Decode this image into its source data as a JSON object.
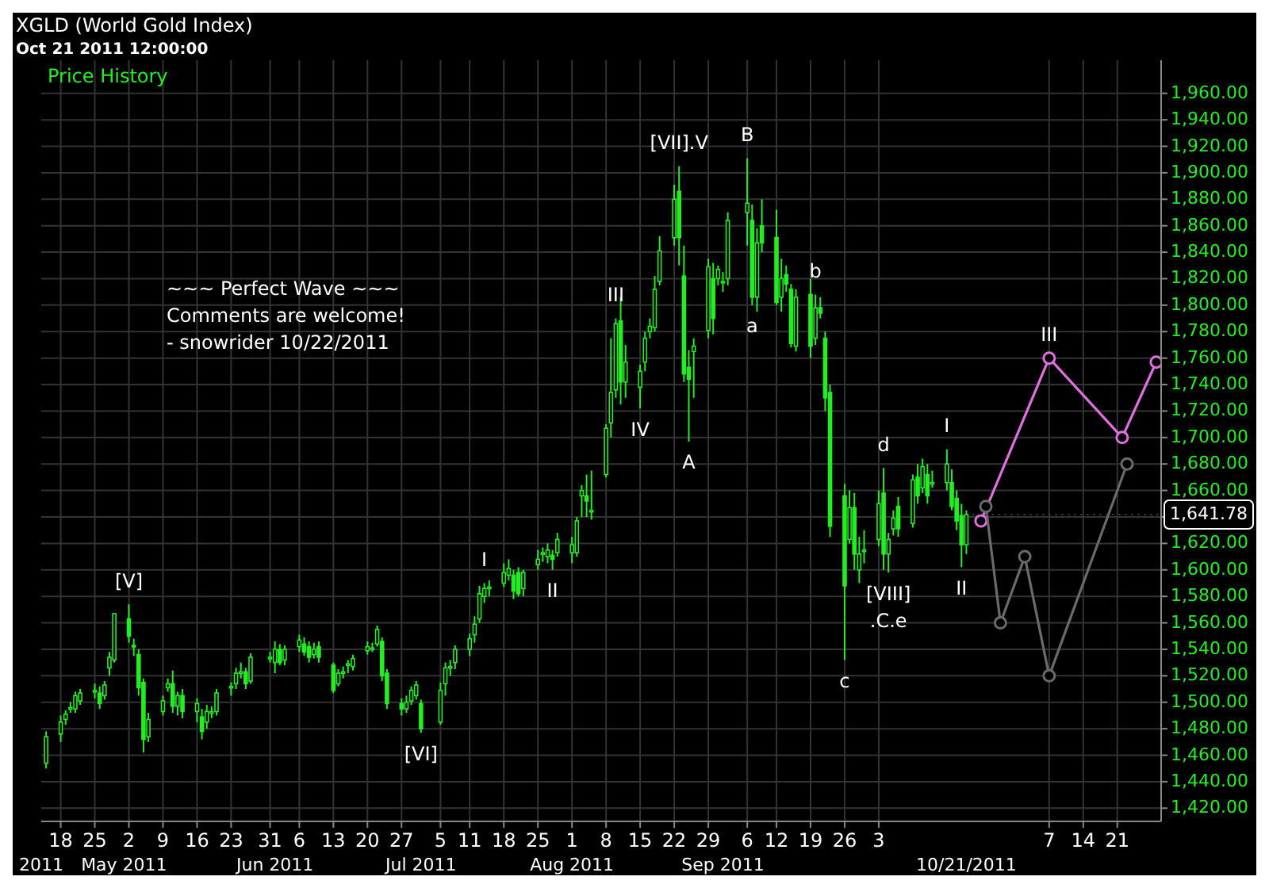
{
  "chart_data": {
    "type": "candlestick",
    "title": "XGLD (World Gold Index)",
    "subtitle": "Oct 21 2011 12:00:00",
    "color": "#22ee22",
    "x": [
      "2011-04-15",
      "2011-04-18",
      "2011-04-19",
      "2011-04-20",
      "2011-04-21",
      "2011-04-22",
      "2011-04-25",
      "2011-04-26",
      "2011-04-27",
      "2011-04-28",
      "2011-04-29",
      "2011-05-02",
      "2011-05-03",
      "2011-05-04",
      "2011-05-05",
      "2011-05-06",
      "2011-05-09",
      "2011-05-10",
      "2011-05-11",
      "2011-05-12",
      "2011-05-13",
      "2011-05-16",
      "2011-05-17",
      "2011-05-18",
      "2011-05-19",
      "2011-05-20",
      "2011-05-23",
      "2011-05-24",
      "2011-05-25",
      "2011-05-26",
      "2011-05-27",
      "2011-05-31",
      "2011-06-01",
      "2011-06-02",
      "2011-06-03",
      "2011-06-06",
      "2011-06-07",
      "2011-06-08",
      "2011-06-09",
      "2011-06-10",
      "2011-06-13",
      "2011-06-14",
      "2011-06-15",
      "2011-06-16",
      "2011-06-17",
      "2011-06-20",
      "2011-06-21",
      "2011-06-22",
      "2011-06-23",
      "2011-06-24",
      "2011-06-27",
      "2011-06-28",
      "2011-06-29",
      "2011-06-30",
      "2011-07-01",
      "2011-07-05",
      "2011-07-06",
      "2011-07-07",
      "2011-07-08",
      "2011-07-11",
      "2011-07-12",
      "2011-07-13",
      "2011-07-14",
      "2011-07-15",
      "2011-07-18",
      "2011-07-19",
      "2011-07-20",
      "2011-07-21",
      "2011-07-22",
      "2011-07-25",
      "2011-07-26",
      "2011-07-27",
      "2011-07-28",
      "2011-07-29",
      "2011-08-01",
      "2011-08-02",
      "2011-08-03",
      "2011-08-04",
      "2011-08-05",
      "2011-08-08",
      "2011-08-09",
      "2011-08-10",
      "2011-08-11",
      "2011-08-12",
      "2011-08-15",
      "2011-08-16",
      "2011-08-17",
      "2011-08-18",
      "2011-08-19",
      "2011-08-22",
      "2011-08-23",
      "2011-08-24",
      "2011-08-25",
      "2011-08-26",
      "2011-08-29",
      "2011-08-30",
      "2011-08-31",
      "2011-09-01",
      "2011-09-02",
      "2011-09-06",
      "2011-09-07",
      "2011-09-08",
      "2011-09-09",
      "2011-09-12",
      "2011-09-13",
      "2011-09-14",
      "2011-09-15",
      "2011-09-16",
      "2011-09-19",
      "2011-09-20",
      "2011-09-21",
      "2011-09-22",
      "2011-09-23",
      "2011-09-26",
      "2011-09-27",
      "2011-09-28",
      "2011-09-29",
      "2011-09-30",
      "2011-10-03",
      "2011-10-04",
      "2011-10-05",
      "2011-10-06",
      "2011-10-07",
      "2011-10-10",
      "2011-10-11",
      "2011-10-12",
      "2011-10-13",
      "2011-10-14",
      "2011-10-17",
      "2011-10-18",
      "2011-10-19",
      "2011-10-20",
      "2011-10-21"
    ],
    "ohlc": [
      [
        1454,
        1478,
        1450,
        1474
      ],
      [
        1476,
        1490,
        1470,
        1485
      ],
      [
        1487,
        1494,
        1483,
        1491
      ],
      [
        1496,
        1500,
        1492,
        1496
      ],
      [
        1495,
        1508,
        1492,
        1505
      ],
      [
        1501,
        1510,
        1498,
        1507
      ],
      [
        1509,
        1514,
        1503,
        1509
      ],
      [
        1507,
        1512,
        1495,
        1499
      ],
      [
        1505,
        1516,
        1502,
        1513
      ],
      [
        1526,
        1538,
        1520,
        1534
      ],
      [
        1532,
        1567,
        1530,
        1567
      ],
      [
        1563,
        1574,
        1545,
        1550
      ],
      [
        1543,
        1548,
        1535,
        1542
      ],
      [
        1536,
        1540,
        1505,
        1511
      ],
      [
        1515,
        1518,
        1462,
        1472
      ],
      [
        1474,
        1492,
        1470,
        1487
      ],
      [
        1493,
        1505,
        1490,
        1501
      ],
      [
        1511,
        1518,
        1508,
        1514
      ],
      [
        1514,
        1524,
        1492,
        1497
      ],
      [
        1497,
        1508,
        1490,
        1505
      ],
      [
        1505,
        1510,
        1488,
        1493
      ],
      [
        1493,
        1503,
        1485,
        1499
      ],
      [
        1489,
        1495,
        1472,
        1478
      ],
      [
        1485,
        1498,
        1480,
        1493
      ],
      [
        1493,
        1497,
        1488,
        1493
      ],
      [
        1493,
        1510,
        1490,
        1507
      ],
      [
        1512,
        1515,
        1505,
        1512
      ],
      [
        1514,
        1526,
        1510,
        1522
      ],
      [
        1523,
        1530,
        1518,
        1523
      ],
      [
        1523,
        1526,
        1510,
        1514
      ],
      [
        1516,
        1537,
        1514,
        1534
      ],
      [
        1534,
        1538,
        1530,
        1534
      ],
      [
        1530,
        1546,
        1522,
        1540
      ],
      [
        1540,
        1544,
        1528,
        1530
      ],
      [
        1532,
        1543,
        1528,
        1540
      ],
      [
        1542,
        1551,
        1538,
        1547
      ],
      [
        1544,
        1549,
        1535,
        1538
      ],
      [
        1542,
        1546,
        1530,
        1534
      ],
      [
        1536,
        1545,
        1533,
        1540
      ],
      [
        1542,
        1546,
        1530,
        1534
      ],
      [
        1528,
        1530,
        1507,
        1509
      ],
      [
        1514,
        1525,
        1512,
        1522
      ],
      [
        1523,
        1527,
        1518,
        1523
      ],
      [
        1529,
        1532,
        1522,
        1529
      ],
      [
        1527,
        1536,
        1524,
        1533
      ],
      [
        1539,
        1546,
        1536,
        1542
      ],
      [
        1541,
        1545,
        1538,
        1541
      ],
      [
        1544,
        1558,
        1542,
        1555
      ],
      [
        1546,
        1549,
        1516,
        1520
      ],
      [
        1522,
        1525,
        1495,
        1499
      ],
      [
        1499,
        1503,
        1490,
        1495
      ],
      [
        1495,
        1505,
        1492,
        1500
      ],
      [
        1501,
        1512,
        1498,
        1509
      ],
      [
        1505,
        1516,
        1502,
        1513
      ],
      [
        1499,
        1502,
        1477,
        1480
      ],
      [
        1485,
        1515,
        1483,
        1509
      ],
      [
        1514,
        1530,
        1505,
        1526
      ],
      [
        1527,
        1532,
        1520,
        1527
      ],
      [
        1530,
        1543,
        1525,
        1540
      ],
      [
        1540,
        1552,
        1535,
        1548
      ],
      [
        1551,
        1565,
        1545,
        1559
      ],
      [
        1563,
        1588,
        1560,
        1582
      ],
      [
        1580,
        1590,
        1575,
        1586
      ],
      [
        1587,
        1592,
        1580,
        1587
      ],
      [
        1590,
        1605,
        1587,
        1598
      ],
      [
        1596,
        1608,
        1592,
        1601
      ],
      [
        1596,
        1600,
        1578,
        1584
      ],
      [
        1598,
        1602,
        1580,
        1582
      ],
      [
        1586,
        1600,
        1580,
        1598
      ],
      [
        1604,
        1615,
        1600,
        1608
      ],
      [
        1613,
        1617,
        1606,
        1613
      ],
      [
        1610,
        1620,
        1605,
        1615
      ],
      [
        1611,
        1615,
        1600,
        1608
      ],
      [
        1613,
        1628,
        1610,
        1623
      ],
      [
        1613,
        1625,
        1605,
        1619
      ],
      [
        1613,
        1640,
        1610,
        1637
      ],
      [
        1656,
        1664,
        1640,
        1660
      ],
      [
        1656,
        1672,
        1640,
        1652
      ],
      [
        1645,
        1675,
        1638,
        1645
      ],
      [
        1672,
        1710,
        1670,
        1707
      ],
      [
        1711,
        1775,
        1700,
        1734
      ],
      [
        1736,
        1790,
        1730,
        1786
      ],
      [
        1788,
        1806,
        1725,
        1742
      ],
      [
        1742,
        1770,
        1730,
        1757
      ],
      [
        1738,
        1755,
        1722,
        1750
      ],
      [
        1757,
        1780,
        1750,
        1775
      ],
      [
        1780,
        1790,
        1775,
        1784
      ],
      [
        1783,
        1822,
        1780,
        1812
      ],
      [
        1818,
        1852,
        1815,
        1841
      ],
      [
        1851,
        1891,
        1845,
        1880
      ],
      [
        1886,
        1905,
        1830,
        1851
      ],
      [
        1822,
        1845,
        1742,
        1748
      ],
      [
        1753,
        1766,
        1697,
        1744
      ],
      [
        1765,
        1775,
        1730,
        1769
      ],
      [
        1781,
        1835,
        1775,
        1829
      ],
      [
        1820,
        1832,
        1778,
        1790
      ],
      [
        1820,
        1830,
        1815,
        1827
      ],
      [
        1818,
        1825,
        1810,
        1818
      ],
      [
        1820,
        1870,
        1815,
        1864
      ],
      [
        1870,
        1911,
        1845,
        1877
      ],
      [
        1864,
        1876,
        1800,
        1806
      ],
      [
        1806,
        1858,
        1795,
        1847
      ],
      [
        1860,
        1880,
        1840,
        1847
      ],
      [
        1851,
        1872,
        1800,
        1802
      ],
      [
        1806,
        1835,
        1795,
        1820
      ],
      [
        1823,
        1830,
        1810,
        1816
      ],
      [
        1812,
        1816,
        1768,
        1771
      ],
      [
        1769,
        1812,
        1765,
        1806
      ],
      [
        1808,
        1820,
        1760,
        1769
      ],
      [
        1775,
        1808,
        1770,
        1798
      ],
      [
        1798,
        1806,
        1790,
        1794
      ],
      [
        1775,
        1780,
        1720,
        1730
      ],
      [
        1734,
        1740,
        1625,
        1633
      ],
      [
        1656,
        1665,
        1532,
        1588
      ],
      [
        1623,
        1660,
        1620,
        1647
      ],
      [
        1647,
        1658,
        1600,
        1612
      ],
      [
        1600,
        1625,
        1590,
        1612
      ],
      [
        1615,
        1630,
        1605,
        1615
      ],
      [
        1623,
        1660,
        1618,
        1650
      ],
      [
        1658,
        1677,
        1600,
        1612
      ],
      [
        1612,
        1628,
        1598,
        1623
      ],
      [
        1631,
        1645,
        1626,
        1639
      ],
      [
        1648,
        1655,
        1625,
        1631
      ],
      [
        1635,
        1672,
        1632,
        1668
      ],
      [
        1670,
        1680,
        1650,
        1656
      ],
      [
        1662,
        1684,
        1658,
        1678
      ],
      [
        1672,
        1680,
        1650,
        1656
      ],
      [
        1666,
        1675,
        1662,
        1666
      ],
      [
        1666,
        1691,
        1660,
        1680
      ],
      [
        1666,
        1676,
        1645,
        1648
      ],
      [
        1654,
        1660,
        1630,
        1637
      ],
      [
        1641,
        1650,
        1602,
        1619
      ],
      [
        1619,
        1645,
        1612,
        1641.78
      ]
    ],
    "series": [
      {
        "type": "line",
        "color": "#e070e0",
        "x": [
          "2011-10-24",
          "2011-11-07",
          "2011-11-22",
          "2011-11-29"
        ],
        "values": [
          1637,
          1760,
          1700,
          1757
        ]
      },
      {
        "type": "line",
        "color": "#6a6a6a",
        "x": [
          "2011-10-25",
          "2011-10-28",
          "2011-11-02",
          "2011-11-07",
          "2011-11-23"
        ],
        "values": [
          1648,
          1560,
          1610,
          1520,
          1680
        ]
      }
    ],
    "marker": "circle",
    "line_style": "solid",
    "grid": true,
    "xlim": [
      "2011-04-14",
      "2011-11-30"
    ],
    "x2lim": [
      "2011-04-14",
      "2011-11-30"
    ],
    "x2ticks": [
      {
        "value": "2011-04-14",
        "label": "2011"
      },
      {
        "value": "2011-05-01",
        "label": "May 2011"
      },
      {
        "value": "2011-06-01",
        "label": "Jun 2011"
      },
      {
        "value": "2011-07-01",
        "label": "Jul 2011"
      },
      {
        "value": "2011-08-01",
        "label": "Aug 2011"
      },
      {
        "value": "2011-09-01",
        "label": "Sep 2011"
      },
      {
        "value": "2011-10-21",
        "label": "10/21/2011"
      }
    ],
    "xticks": [
      {
        "value": "2011-04-18",
        "label": "18"
      },
      {
        "value": "2011-04-25",
        "label": "25"
      },
      {
        "value": "2011-05-02",
        "label": "2"
      },
      {
        "value": "2011-05-09",
        "label": "9"
      },
      {
        "value": "2011-05-16",
        "label": "16"
      },
      {
        "value": "2011-05-23",
        "label": "23"
      },
      {
        "value": "2011-05-31",
        "label": "31"
      },
      {
        "value": "2011-06-06",
        "label": "6"
      },
      {
        "value": "2011-06-13",
        "label": "13"
      },
      {
        "value": "2011-06-20",
        "label": "20"
      },
      {
        "value": "2011-06-27",
        "label": "27"
      },
      {
        "value": "2011-07-05",
        "label": "5"
      },
      {
        "value": "2011-07-11",
        "label": "11"
      },
      {
        "value": "2011-07-18",
        "label": "18"
      },
      {
        "value": "2011-07-25",
        "label": "25"
      },
      {
        "value": "2011-08-01",
        "label": "1"
      },
      {
        "value": "2011-08-08",
        "label": "8"
      },
      {
        "value": "2011-08-15",
        "label": "15"
      },
      {
        "value": "2011-08-22",
        "label": "22"
      },
      {
        "value": "2011-08-29",
        "label": "29"
      },
      {
        "value": "2011-09-06",
        "label": "6"
      },
      {
        "value": "2011-09-12",
        "label": "12"
      },
      {
        "value": "2011-09-19",
        "label": "19"
      },
      {
        "value": "2011-09-26",
        "label": "26"
      },
      {
        "value": "2011-10-03",
        "label": "3"
      },
      {
        "value": "2011-11-07",
        "label": "7"
      },
      {
        "value": "2011-11-14",
        "label": "14"
      },
      {
        "value": "2011-11-21",
        "label": "21"
      }
    ],
    "ylim": [
      1410,
      1985
    ],
    "yticks": [
      {
        "value": 1420,
        "label": "1,420.00"
      },
      {
        "value": 1440,
        "label": "1,440.00"
      },
      {
        "value": 1460,
        "label": "1,460.00"
      },
      {
        "value": 1480,
        "label": "1,480.00"
      },
      {
        "value": 1500,
        "label": "1,500.00"
      },
      {
        "value": 1520,
        "label": "1,520.00"
      },
      {
        "value": 1540,
        "label": "1,540.00"
      },
      {
        "value": 1560,
        "label": "1,560.00"
      },
      {
        "value": 1580,
        "label": "1,580.00"
      },
      {
        "value": 1600,
        "label": "1,600.00"
      },
      {
        "value": 1620,
        "label": "1,620.00"
      },
      {
        "value": 1640,
        "label": null
      },
      {
        "value": 1660,
        "label": "1,660.00"
      },
      {
        "value": 1680,
        "label": "1,680.00"
      },
      {
        "value": 1700,
        "label": "1,700.00"
      },
      {
        "value": 1720,
        "label": "1,720.00"
      },
      {
        "value": 1740,
        "label": "1,740.00"
      },
      {
        "value": 1760,
        "label": "1,760.00"
      },
      {
        "value": 1780,
        "label": "1,780.00"
      },
      {
        "value": 1800,
        "label": "1,800.00"
      },
      {
        "value": 1820,
        "label": "1,820.00"
      },
      {
        "value": 1840,
        "label": "1,840.00"
      },
      {
        "value": 1860,
        "label": "1,860.00"
      },
      {
        "value": 1880,
        "label": "1,880.00"
      },
      {
        "value": 1900,
        "label": "1,900.00"
      },
      {
        "value": 1920,
        "label": "1,920.00"
      },
      {
        "value": 1940,
        "label": "1,940.00"
      },
      {
        "value": 1960,
        "label": "1,960.00"
      }
    ],
    "annotations": [
      "Price History",
      "~~~ Perfect Wave ~~~",
      "Comments are welcome!",
      "- snowrider  10/22/2011",
      {
        "text": "1,641.78",
        "x": "2011-10-21",
        "y": 1641.78
      },
      {
        "text": "[V]",
        "x": "2011-05-02",
        "y": 1574
      },
      {
        "text": "[VI]",
        "x": "2011-07-01",
        "y": 1477
      },
      {
        "text": "I",
        "x": "2011-07-14",
        "y": 1590
      },
      {
        "text": "II",
        "x": "2011-07-28",
        "y": 1600
      },
      {
        "text": "III",
        "x": "2011-08-10",
        "y": 1790
      },
      {
        "text": "IV",
        "x": "2011-08-15",
        "y": 1722
      },
      {
        "text": "[VII].V",
        "x": "2011-08-23",
        "y": 1905
      },
      {
        "text": "A",
        "x": "2011-08-25",
        "y": 1697
      },
      {
        "text": "B",
        "x": "2011-09-06",
        "y": 1911
      },
      {
        "text": "a",
        "x": "2011-09-07",
        "y": 1800
      },
      {
        "text": "b",
        "x": "2011-09-20",
        "y": 1808
      },
      {
        "text": "c",
        "x": "2011-09-26",
        "y": 1532
      },
      {
        "text": "d",
        "x": "2011-10-04",
        "y": 1677
      },
      {
        "text": "[VIII]",
        "x": "2011-10-05",
        "y": 1598
      },
      {
        "text": ".C.e",
        "x": "2011-10-05",
        "y": 1598
      },
      {
        "text": "I",
        "x": "2011-10-17",
        "y": 1691
      },
      {
        "text": "II",
        "x": "2011-10-20",
        "y": 1602
      },
      {
        "text": "III",
        "x": "2011-11-07",
        "y": 1760
      }
    ]
  }
}
